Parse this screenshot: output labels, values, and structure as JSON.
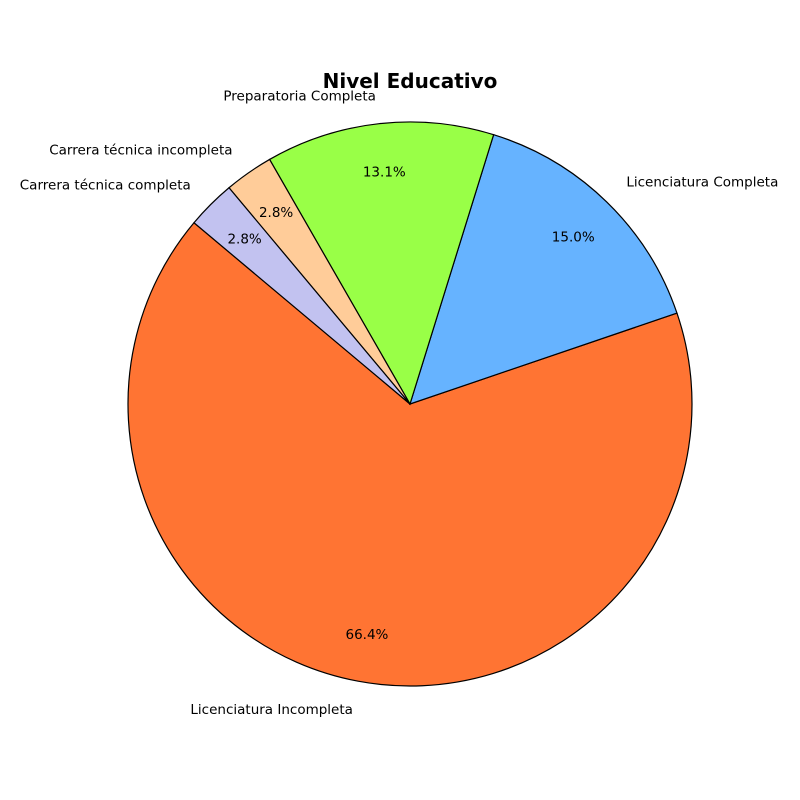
{
  "chart_data": {
    "type": "pie",
    "title": "Nivel Educativo",
    "start_angle_deg": 140,
    "direction": "counterclockwise",
    "slices": [
      {
        "label": "Licenciatura Incompleta",
        "value": 66.4,
        "pct_label": "66.4%",
        "color": "#FF7433"
      },
      {
        "label": "Licenciatura Completa",
        "value": 15.0,
        "pct_label": "15.0%",
        "color": "#66B3FF"
      },
      {
        "label": "Preparatoria Completa",
        "value": 13.1,
        "pct_label": "13.1%",
        "color": "#99FF47"
      },
      {
        "label": "Carrera técnica incompleta",
        "value": 2.8,
        "pct_label": "2.8%",
        "color": "#FFCC99"
      },
      {
        "label": "Carrera técnica completa",
        "value": 2.8,
        "pct_label": "2.8%",
        "color": "#C2C2F0"
      }
    ]
  }
}
